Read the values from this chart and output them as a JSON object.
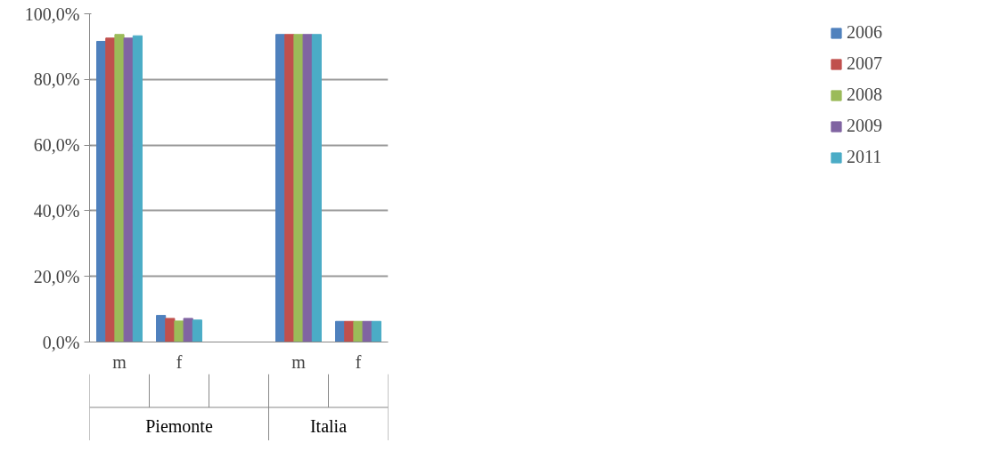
{
  "chart_data": {
    "type": "bar",
    "categories": [
      "m",
      "f",
      null,
      "m",
      "f"
    ],
    "series": [
      {
        "name": "2006",
        "color": "#4f81bd",
        "values": [
          91.6,
          8.1,
          null,
          93.7,
          6.3
        ]
      },
      {
        "name": "2007",
        "color": "#c0504d",
        "values": [
          92.6,
          7.2,
          null,
          93.7,
          6.3
        ]
      },
      {
        "name": "2008",
        "color": "#9bbb59",
        "values": [
          93.7,
          6.4,
          null,
          93.7,
          6.3
        ]
      },
      {
        "name": "2009",
        "color": "#8064a2",
        "values": [
          92.6,
          7.2,
          null,
          93.7,
          6.3
        ]
      },
      {
        "name": "2011",
        "color": "#4bacc6",
        "values": [
          93.3,
          6.7,
          null,
          93.7,
          6.3
        ]
      }
    ],
    "annotations": [
      "Piemonte",
      "Italia"
    ],
    "ylim": [
      0,
      100
    ],
    "yticks": [
      {
        "value": 0,
        "label": "0,0%"
      },
      {
        "value": 20,
        "label": "20,0%"
      },
      {
        "value": 40,
        "label": "40,0%"
      },
      {
        "value": 60,
        "label": "60,0%"
      },
      {
        "value": 80,
        "label": "80,0%"
      },
      {
        "value": 100,
        "label": "100,0%"
      }
    ],
    "grid": "y",
    "legend": "right"
  }
}
